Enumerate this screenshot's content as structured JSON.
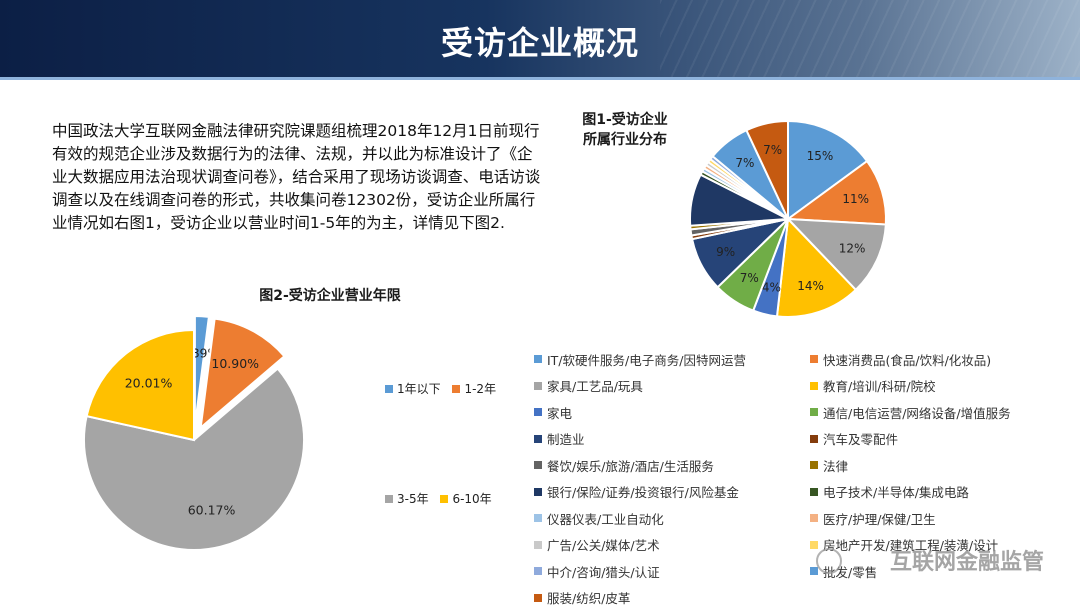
{
  "header": {
    "title": "受访企业概况"
  },
  "intro": {
    "text": "中国政法大学互联网金融法律研究院课题组梳理2018年12月1日前现行有效的规范企业涉及数据行为的法律、法规，并以此为标准设计了《企业大数据应用法治现状调查问卷》，结合采用了现场访谈调查、电话访谈调查以及在线调查问卷的形式，共收集问卷12302份，受访企业所属行业情况如右图1，受访企业以营业时间1-5年的为主，详情见下图2."
  },
  "watermark": {
    "text": "互联网金融监管"
  },
  "chart_data": [
    {
      "type": "pie",
      "title_line1": "图1-受访企业",
      "title_line2": "所属行业分布",
      "slices": [
        {
          "name": "IT/软硬件服务/电子商务/因特网运营",
          "value": 15,
          "label": "15%",
          "color": "#5b9bd5"
        },
        {
          "name": "快速消费品(食品/饮料/化妆品)",
          "value": 11,
          "label": "11%",
          "color": "#ed7d31"
        },
        {
          "name": "家具/工艺品/玩具",
          "value": 12,
          "label": "12%",
          "color": "#a5a5a5"
        },
        {
          "name": "教育/培训/科研/院校",
          "value": 14,
          "label": "14%",
          "color": "#ffc000"
        },
        {
          "name": "家电",
          "value": 4,
          "label": "4%",
          "color": "#4472c4"
        },
        {
          "name": "通信/电信运营/网络设备/增值服务",
          "value": 7,
          "label": "7%",
          "color": "#70ad47"
        },
        {
          "name": "制造业",
          "value": 9,
          "label": "9%",
          "color": "#264478"
        },
        {
          "name": "汽车及零配件",
          "value": 0.6,
          "label": "",
          "color": "#843c0c"
        },
        {
          "name": "餐饮/娱乐/旅游/酒店/生活服务",
          "value": 1.0,
          "label": "",
          "color": "#636363"
        },
        {
          "name": "法律",
          "value": 0.6,
          "label": "",
          "color": "#997300"
        },
        {
          "name": "银行/保险/证券/投资银行/风险基金",
          "value": 8.6,
          "label": "",
          "color": "#1f3864"
        },
        {
          "name": "电子技术/半导体/集成电路",
          "value": 0.6,
          "label": "",
          "color": "#375623"
        },
        {
          "name": "仪器仪表/工业自动化",
          "value": 0.6,
          "label": "",
          "color": "#9dc3e6"
        },
        {
          "name": "医疗/护理/保健/卫生",
          "value": 0.6,
          "label": "",
          "color": "#f4b183"
        },
        {
          "name": "广告/公关/媒体/艺术",
          "value": 0.6,
          "label": "",
          "color": "#c9c9c9"
        },
        {
          "name": "房地产开发/建筑工程/装潢/设计",
          "value": 0.6,
          "label": "",
          "color": "#ffd966"
        },
        {
          "name": "中介/咨询/猎头/认证",
          "value": 0.6,
          "label": "",
          "color": "#8faadc"
        },
        {
          "name": "批发/零售",
          "value": 7,
          "label": "7%",
          "color": "#5b9bd5"
        },
        {
          "name": "服装/纺织/皮革",
          "value": 7,
          "label": "7%",
          "color": "#c55a11"
        }
      ]
    },
    {
      "type": "pie",
      "title": "图2-受访企业营业年限",
      "slices": [
        {
          "name": "1年以下",
          "value": 1.89,
          "label": "1.89%",
          "color": "#5b9bd5"
        },
        {
          "name": "1-2年",
          "value": 10.9,
          "label": "10.90%",
          "color": "#ed7d31"
        },
        {
          "name": "3-5年",
          "value": 60.17,
          "label": "60.17%",
          "color": "#a5a5a5"
        },
        {
          "name": "6-10年",
          "value": 20.01,
          "label": "20.01%",
          "color": "#ffc000"
        }
      ]
    }
  ]
}
